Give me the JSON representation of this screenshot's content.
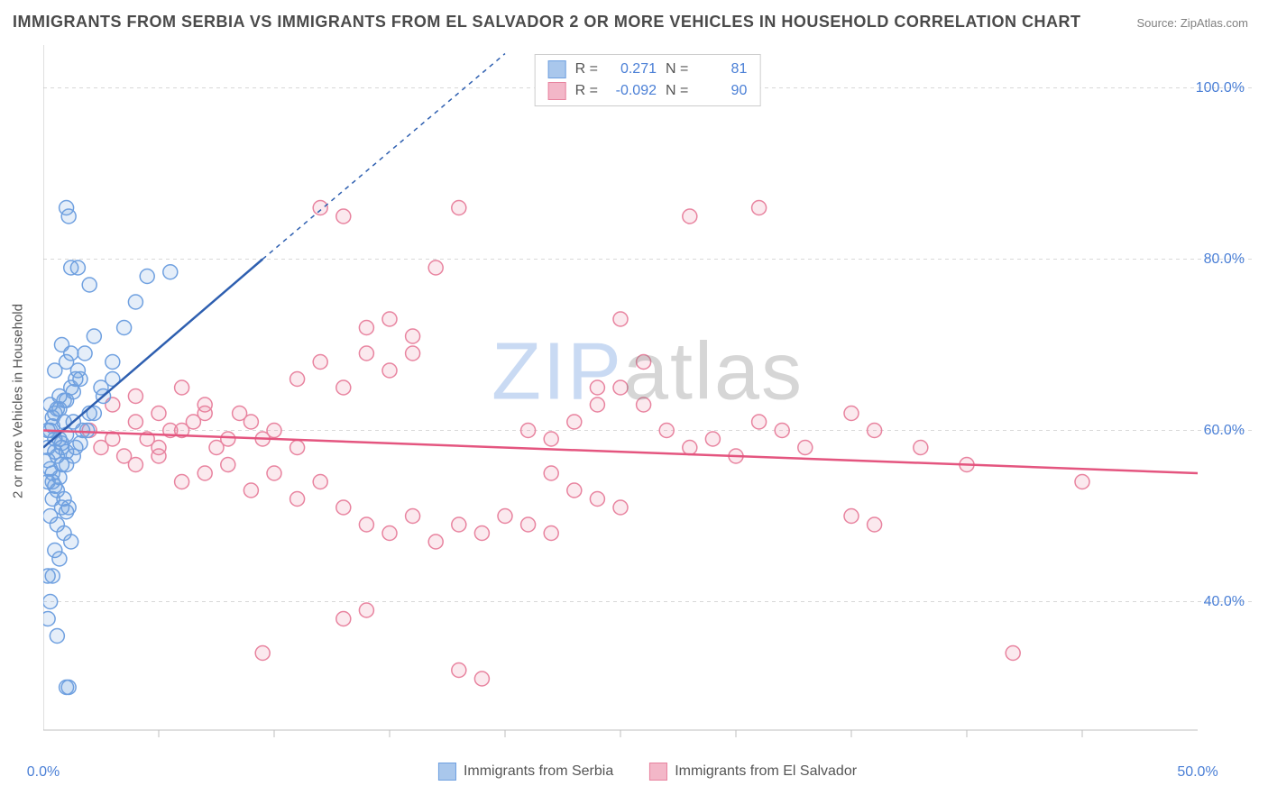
{
  "title": "IMMIGRANTS FROM SERBIA VS IMMIGRANTS FROM EL SALVADOR 2 OR MORE VEHICLES IN HOUSEHOLD CORRELATION CHART",
  "source": "Source: ZipAtlas.com",
  "y_axis_label": "2 or more Vehicles in Household",
  "watermark_z": "ZIP",
  "watermark_rest": "atlas",
  "chart": {
    "type": "scatter",
    "background_color": "#ffffff",
    "grid_color": "#d8d8d8",
    "axis_color": "#bfbfbf",
    "tick_color": "#4a7fd6",
    "xlim": [
      0,
      50
    ],
    "ylim": [
      25,
      105
    ],
    "x_ticks": [
      0,
      50
    ],
    "x_tick_labels": [
      "0.0%",
      "50.0%"
    ],
    "x_minor_ticks": [
      5,
      10,
      15,
      20,
      25,
      30,
      35,
      40,
      45
    ],
    "y_ticks": [
      40,
      60,
      80,
      100
    ],
    "y_tick_labels": [
      "40.0%",
      "60.0%",
      "80.0%",
      "100.0%"
    ],
    "marker_radius": 8,
    "marker_stroke_width": 1.5,
    "marker_fill_opacity": 0.18,
    "trend_line_width": 2.5,
    "trend_dash": "5,5"
  },
  "series": {
    "serbia": {
      "label": "Immigrants from Serbia",
      "color": "#6fa0e0",
      "fill": "#a9c7ec",
      "trend_color": "#2e5fb0",
      "R": "0.271",
      "N": "81",
      "trend": {
        "x1": 0,
        "y1": 58,
        "x2_solid": 9.5,
        "y2_solid": 80,
        "x2_dash": 20,
        "y2_dash": 104
      },
      "points": [
        [
          0.2,
          58
        ],
        [
          0.3,
          60
        ],
        [
          0.4,
          55
        ],
        [
          0.5,
          62
        ],
        [
          0.6,
          57
        ],
        [
          0.7,
          59
        ],
        [
          0.8,
          56
        ],
        [
          0.9,
          61
        ],
        [
          1.0,
          86
        ],
        [
          1.1,
          85
        ],
        [
          1.2,
          79
        ],
        [
          1.5,
          79
        ],
        [
          2.0,
          77
        ],
        [
          1.0,
          68
        ],
        [
          1.2,
          69
        ],
        [
          0.5,
          67
        ],
        [
          0.8,
          70
        ],
        [
          1.4,
          66
        ],
        [
          0.3,
          63
        ],
        [
          0.7,
          64
        ],
        [
          0.4,
          54
        ],
        [
          0.6,
          53
        ],
        [
          0.9,
          52
        ],
        [
          1.1,
          51
        ],
        [
          0.5,
          46
        ],
        [
          0.7,
          45
        ],
        [
          0.2,
          43
        ],
        [
          0.4,
          43
        ],
        [
          0.3,
          40
        ],
        [
          0.2,
          38
        ],
        [
          0.6,
          36
        ],
        [
          1.0,
          30
        ],
        [
          1.1,
          30
        ],
        [
          0.2,
          56.5
        ],
        [
          0.5,
          57.5
        ],
        [
          0.8,
          58.5
        ],
        [
          1.0,
          59.5
        ],
        [
          1.3,
          61
        ],
        [
          0.4,
          60.5
        ],
        [
          0.6,
          62.5
        ],
        [
          0.9,
          63.5
        ],
        [
          1.2,
          65
        ],
        [
          1.5,
          67
        ],
        [
          1.8,
          69
        ],
        [
          2.2,
          71
        ],
        [
          0.3,
          55.5
        ],
        [
          0.7,
          54.5
        ],
        [
          1.0,
          56
        ],
        [
          1.4,
          58
        ],
        [
          1.7,
          60
        ],
        [
          2.0,
          62
        ],
        [
          2.5,
          65
        ],
        [
          3.0,
          68
        ],
        [
          3.5,
          72
        ],
        [
          4.0,
          75
        ],
        [
          4.5,
          78
        ],
        [
          5.5,
          78.5
        ],
        [
          0.3,
          50
        ],
        [
          0.6,
          49
        ],
        [
          0.9,
          48
        ],
        [
          1.2,
          47
        ],
        [
          0.4,
          52
        ],
        [
          0.8,
          51
        ],
        [
          1.0,
          50.5
        ],
        [
          0.2,
          60
        ],
        [
          0.5,
          59
        ],
        [
          0.8,
          58
        ],
        [
          1.0,
          57.5
        ],
        [
          1.3,
          57
        ],
        [
          1.6,
          58.5
        ],
        [
          1.9,
          60
        ],
        [
          2.2,
          62
        ],
        [
          2.6,
          64
        ],
        [
          3.0,
          66
        ],
        [
          0.4,
          61.5
        ],
        [
          0.7,
          62.5
        ],
        [
          1.0,
          63.5
        ],
        [
          1.3,
          64.5
        ],
        [
          1.6,
          66
        ],
        [
          0.2,
          54
        ],
        [
          0.5,
          53.5
        ]
      ]
    },
    "el_salvador": {
      "label": "Immigrants from El Salvador",
      "color": "#e8839f",
      "fill": "#f3b7c8",
      "trend_color": "#e4557f",
      "R": "-0.092",
      "N": "90",
      "trend": {
        "x1": 0,
        "y1": 60,
        "x2": 50,
        "y2": 55
      },
      "points": [
        [
          2,
          60
        ],
        [
          3,
          59
        ],
        [
          4,
          61
        ],
        [
          5,
          58
        ],
        [
          6,
          60
        ],
        [
          7,
          62
        ],
        [
          8,
          59
        ],
        [
          9,
          61
        ],
        [
          10,
          60
        ],
        [
          11,
          58
        ],
        [
          12,
          86
        ],
        [
          13,
          85
        ],
        [
          18,
          86
        ],
        [
          14,
          72
        ],
        [
          15,
          73
        ],
        [
          16,
          71
        ],
        [
          17,
          79
        ],
        [
          11,
          66
        ],
        [
          12,
          68
        ],
        [
          13,
          65
        ],
        [
          14,
          69
        ],
        [
          15,
          67
        ],
        [
          16,
          69
        ],
        [
          9,
          53
        ],
        [
          10,
          55
        ],
        [
          11,
          52
        ],
        [
          12,
          54
        ],
        [
          13,
          51
        ],
        [
          14,
          49
        ],
        [
          15,
          48
        ],
        [
          16,
          50
        ],
        [
          17,
          47
        ],
        [
          18,
          49
        ],
        [
          19,
          48
        ],
        [
          20,
          50
        ],
        [
          9.5,
          34
        ],
        [
          13,
          38
        ],
        [
          14,
          39
        ],
        [
          18,
          32
        ],
        [
          19,
          31
        ],
        [
          4,
          56
        ],
        [
          5,
          57
        ],
        [
          6,
          54
        ],
        [
          7,
          55
        ],
        [
          8,
          56
        ],
        [
          3,
          63
        ],
        [
          4,
          64
        ],
        [
          5,
          62
        ],
        [
          6,
          65
        ],
        [
          7,
          63
        ],
        [
          21,
          60
        ],
        [
          22,
          59
        ],
        [
          23,
          61
        ],
        [
          24,
          63
        ],
        [
          25,
          65
        ],
        [
          26,
          63
        ],
        [
          27,
          60
        ],
        [
          28,
          58
        ],
        [
          29,
          59
        ],
        [
          30,
          57
        ],
        [
          31,
          61
        ],
        [
          32,
          60
        ],
        [
          33,
          58
        ],
        [
          25,
          73
        ],
        [
          28,
          85
        ],
        [
          24,
          65
        ],
        [
          26,
          68
        ],
        [
          31,
          86
        ],
        [
          22,
          55
        ],
        [
          23,
          53
        ],
        [
          24,
          52
        ],
        [
          25,
          51
        ],
        [
          21,
          49
        ],
        [
          22,
          48
        ],
        [
          42,
          34
        ],
        [
          35,
          62
        ],
        [
          36,
          60
        ],
        [
          38,
          58
        ],
        [
          40,
          56
        ],
        [
          45,
          54
        ],
        [
          35,
          50
        ],
        [
          36,
          49
        ],
        [
          2.5,
          58
        ],
        [
          3.5,
          57
        ],
        [
          4.5,
          59
        ],
        [
          5.5,
          60
        ],
        [
          6.5,
          61
        ],
        [
          7.5,
          58
        ],
        [
          8.5,
          62
        ],
        [
          9.5,
          59
        ]
      ]
    }
  },
  "stats_labels": {
    "R": "R =",
    "N": "N ="
  }
}
